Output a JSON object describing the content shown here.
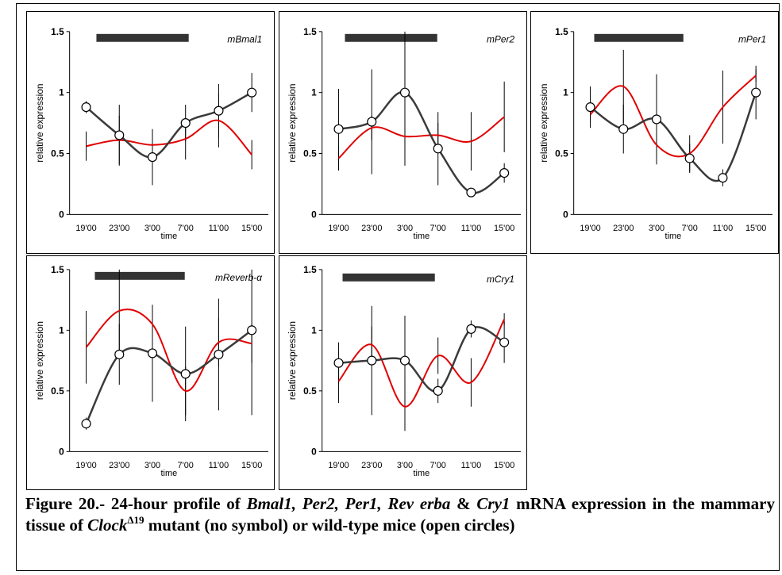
{
  "chart_data": [
    {
      "type": "line",
      "gene_label": "mBmal1",
      "xlabel": "time",
      "ylabel": "relative expression",
      "categories": [
        "19'00",
        "23'00",
        "3'00",
        "7'00",
        "11'00",
        "15'00"
      ],
      "ylim": [
        0,
        1.5
      ],
      "yticks": [
        "0",
        "0.5",
        "1",
        "1.5"
      ],
      "series": [
        {
          "marker": "open-circle",
          "color": "#3a3a3a",
          "x": [
            0,
            1,
            2,
            3,
            4,
            5
          ],
          "values": [
            0.88,
            0.65,
            0.47,
            0.75,
            0.85,
            1.0
          ],
          "error": [
            0.05,
            0.25,
            0.23,
            0.15,
            0.22,
            0.16
          ]
        },
        {
          "marker": "none",
          "color": "#e00000",
          "x": [
            0,
            1,
            2,
            3,
            4,
            5
          ],
          "values": [
            0.56,
            0.61,
            0.57,
            0.62,
            0.77,
            0.49
          ],
          "error": [
            0.12,
            0.2,
            0.12,
            0.17,
            0.22,
            0.12
          ]
        }
      ]
    },
    {
      "type": "line",
      "gene_label": "mPer2",
      "xlabel": "time",
      "ylabel": "relative expression",
      "categories": [
        "19'00",
        "23'00",
        "3'00",
        "7'00",
        "11'00",
        "15'00"
      ],
      "ylim": [
        0,
        1.5
      ],
      "yticks": [
        "0",
        "0.5",
        "1",
        "1.5"
      ],
      "series": [
        {
          "marker": "open-circle",
          "color": "#3a3a3a",
          "x": [
            0,
            1,
            2,
            3,
            4,
            5
          ],
          "values": [
            0.7,
            0.76,
            1.0,
            0.54,
            0.18,
            0.34
          ],
          "error": [
            0.33,
            0.43,
            0.6,
            0.3,
            0.03,
            0.08
          ]
        },
        {
          "marker": "none",
          "color": "#e00000",
          "x": [
            0,
            1,
            2,
            3,
            4,
            5
          ],
          "values": [
            0.46,
            0.71,
            0.64,
            0.65,
            0.6,
            0.8
          ],
          "error": [
            0.1,
            0.1,
            0.1,
            0.1,
            0.24,
            0.29
          ]
        }
      ]
    },
    {
      "type": "line",
      "gene_label": "mPer1",
      "xlabel": "time",
      "ylabel": "relative expression",
      "categories": [
        "19'00",
        "23'00",
        "3'00",
        "7'00",
        "11'00",
        "15'00"
      ],
      "ylim": [
        0,
        1.5
      ],
      "yticks": [
        "0",
        "0.5",
        "1",
        "1.5"
      ],
      "series": [
        {
          "marker": "open-circle",
          "color": "#3a3a3a",
          "x": [
            0,
            1,
            2,
            3,
            4,
            5
          ],
          "values": [
            0.88,
            0.7,
            0.78,
            0.46,
            0.3,
            1.0
          ],
          "error": [
            0.17,
            0.2,
            0.37,
            0.12,
            0.07,
            0.22
          ]
        },
        {
          "marker": "none",
          "color": "#e00000",
          "x": [
            0,
            1,
            2,
            3,
            4,
            5
          ],
          "values": [
            0.82,
            1.05,
            0.57,
            0.5,
            0.88,
            1.14
          ],
          "error": [
            0.05,
            0.3,
            0.1,
            0.15,
            0.3,
            0.05
          ]
        }
      ]
    },
    {
      "type": "line",
      "gene_label": "mReverb-α",
      "xlabel": "time",
      "ylabel": "relative expression",
      "categories": [
        "19'00",
        "23'00",
        "3'00",
        "7'00",
        "11'00",
        "15'00"
      ],
      "ylim": [
        0,
        1.5
      ],
      "yticks": [
        "0",
        "0.5",
        "1",
        "1.5"
      ],
      "series": [
        {
          "marker": "open-circle",
          "color": "#3a3a3a",
          "x": [
            0,
            1,
            2,
            3,
            4,
            5
          ],
          "values": [
            0.23,
            0.8,
            0.81,
            0.64,
            0.8,
            1.0
          ],
          "error": [
            0.05,
            0.25,
            0.4,
            0.39,
            0.46,
            0.7
          ]
        },
        {
          "marker": "none",
          "color": "#e00000",
          "x": [
            0,
            1,
            2,
            3,
            4,
            5
          ],
          "values": [
            0.86,
            1.16,
            1.05,
            0.5,
            0.9,
            0.89
          ],
          "error": [
            0.3,
            0.35,
            0.12,
            0.2,
            0.2,
            0.16
          ]
        }
      ]
    },
    {
      "type": "line",
      "gene_label": "mCry1",
      "xlabel": "time",
      "ylabel": "relative expression",
      "categories": [
        "19'00",
        "23'00",
        "3'00",
        "7'00",
        "11'00",
        "15'00"
      ],
      "ylim": [
        0,
        1.5
      ],
      "yticks": [
        "0",
        "0.5",
        "1",
        "1.5"
      ],
      "series": [
        {
          "marker": "open-circle",
          "color": "#3a3a3a",
          "x": [
            0,
            1,
            2,
            3,
            4,
            5
          ],
          "values": [
            0.73,
            0.75,
            0.75,
            0.5,
            1.01,
            0.9
          ],
          "error": [
            0.17,
            0.45,
            0.37,
            0.1,
            0.07,
            0.17
          ]
        },
        {
          "marker": "none",
          "color": "#e00000",
          "x": [
            0,
            1,
            2,
            3,
            4,
            5
          ],
          "values": [
            0.58,
            0.88,
            0.37,
            0.79,
            0.57,
            1.09
          ],
          "error": [
            0.18,
            0.15,
            0.2,
            0.15,
            0.2,
            0.05
          ]
        }
      ]
    }
  ],
  "caption": {
    "lead": "Figure 20.- 24-hour profile of ",
    "genes": "Bmal1, Per2, Per1, Rev erba",
    "amp": " & ",
    "gene_last": "Cry1",
    "mid": " mRNA expression in the mammary tissue of ",
    "clock": "Clock",
    "delta": "Δ19",
    "tail": " mutant (no symbol) or wild-type mice (open circles)"
  }
}
